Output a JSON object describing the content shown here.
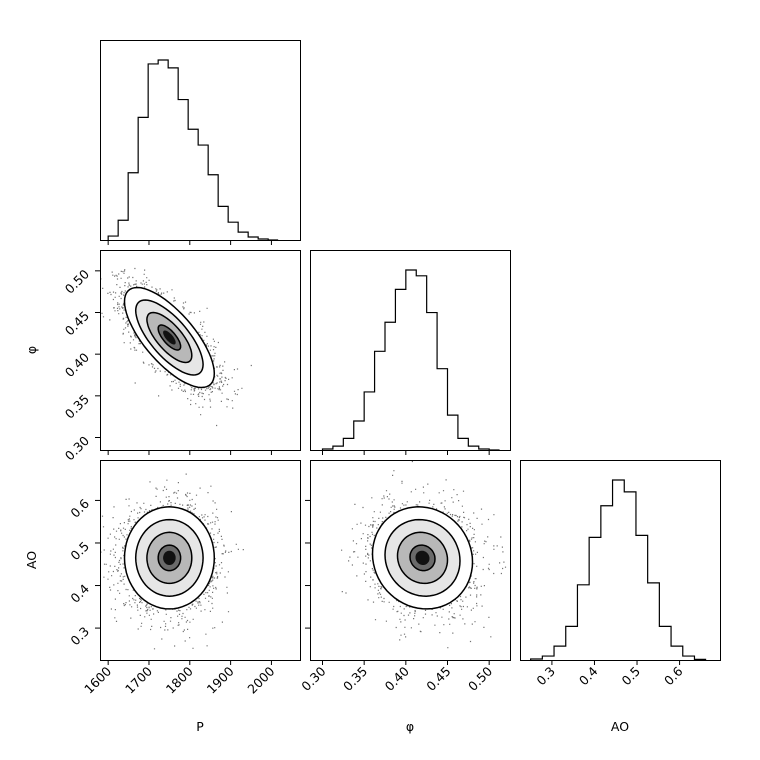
{
  "chart_data": {
    "type": "corner",
    "title": "",
    "parameters": [
      {
        "name": "P",
        "range": [
          1580,
          2070
        ],
        "ticks": [
          1600,
          1700,
          1800,
          1900,
          2000
        ],
        "tick_labels": [
          "1600",
          "1700",
          "1800",
          "1900",
          "2000"
        ],
        "mean": 1750,
        "sd": 55
      },
      {
        "name": "φ",
        "range": [
          0.285,
          0.525
        ],
        "ticks": [
          0.3,
          0.35,
          0.4,
          0.45,
          0.5
        ],
        "tick_labels": [
          "0.30",
          "0.35",
          "0.40",
          "0.45",
          "0.50"
        ],
        "mean": 0.42,
        "sd": 0.03
      },
      {
        "name": "AO",
        "range": [
          0.225,
          0.695
        ],
        "ticks": [
          0.3,
          0.4,
          0.5,
          0.6
        ],
        "tick_labels": [
          "0.3",
          "0.4",
          "0.5",
          "0.6"
        ],
        "mean": 0.465,
        "sd": 0.06
      }
    ],
    "histograms": [
      {
        "param": "P",
        "bin_edges": [
          1600,
          1624.5,
          1649,
          1673.5,
          1698,
          1722.5,
          1747,
          1771.5,
          1796,
          1820.5,
          1845,
          1869.5,
          1894,
          1918.5,
          1943,
          1967.5,
          1992,
          2016.5
        ],
        "counts": [
          2,
          10,
          34,
          62,
          89,
          91,
          87,
          71,
          56,
          48,
          33,
          17,
          9,
          4,
          1.5,
          0.5,
          0
        ]
      },
      {
        "param": "φ",
        "bin_edges": [
          0.3,
          0.3125,
          0.325,
          0.3375,
          0.35,
          0.3625,
          0.375,
          0.3875,
          0.4,
          0.4125,
          0.425,
          0.4375,
          0.45,
          0.4625,
          0.475,
          0.4875,
          0.5,
          0.5125
        ],
        "counts": [
          0.5,
          2,
          6,
          15,
          30,
          51,
          66,
          83,
          93,
          90,
          71,
          42,
          18,
          6,
          2,
          0.5,
          0
        ]
      },
      {
        "param": "AO",
        "bin_edges": [
          0.25,
          0.2775,
          0.305,
          0.3325,
          0.36,
          0.3875,
          0.415,
          0.4425,
          0.47,
          0.4975,
          0.525,
          0.5525,
          0.58,
          0.6075,
          0.635,
          0.6625
        ],
        "counts": [
          0.5,
          2,
          7,
          17,
          38,
          62,
          78,
          91,
          85,
          63,
          39,
          17,
          7,
          2,
          0.3
        ]
      }
    ],
    "pairs": [
      {
        "x": "P",
        "y": "φ",
        "correlation": -0.72
      },
      {
        "x": "P",
        "y": "AO",
        "correlation": 0.0
      },
      {
        "x": "φ",
        "y": "AO",
        "correlation": -0.08
      }
    ],
    "contour_levels_sigma": [
      0.5,
      1.0,
      1.5,
      2.0
    ],
    "grid": false,
    "legend": "none"
  }
}
